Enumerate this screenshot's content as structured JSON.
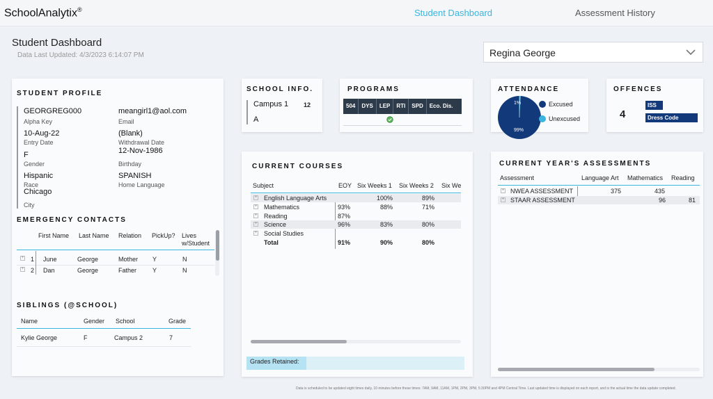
{
  "header": {
    "logo": "SchoolAnalytix",
    "logo_mark": "®",
    "tabs": [
      "Student Dashboard",
      "Assessment History"
    ]
  },
  "page": {
    "title": "Student Dashboard",
    "updated": "Data Last Updated: 4/3/2023 6:14:07 PM",
    "selected_student": "Regina George",
    "footer_note": "Data is scheduled to be updated eight times daily, 10 minutes before these times: 7AM, 9AM, 11AM, 1PM, 2PM, 3PM, 5:30PM and 4PM Central Time. Last updated time is displayed on each report, and is the actual time the data update completed."
  },
  "profile": {
    "title": "STUDENT PROFILE",
    "alpha_key": "GEORGREG000",
    "alpha_key_label": "Alpha Key",
    "email": "meangirl1@aol.com",
    "email_label": "Email",
    "entry_date": "10-Aug-22",
    "entry_date_label": "Entry Date",
    "withdrawal": "(Blank)",
    "withdrawal_label": "Withdrawal Date",
    "gender": "F",
    "gender_label": "Gender",
    "birthday": "12-Nov-1986",
    "birthday_label": "Birthday",
    "race": "Hispanic",
    "race_label": "Race",
    "home_language": "SPANISH",
    "home_language_label": "Home Language",
    "city": "Chicago",
    "city_label": "City"
  },
  "emergency": {
    "title": "EMERGENCY CONTACTS",
    "headers": [
      "First Name",
      "Last Name",
      "Relation",
      "PickUp?",
      "Lives",
      "w/Student"
    ],
    "rows": [
      {
        "idx": "1",
        "first": "June",
        "last": "George",
        "relation": "Mother",
        "pickup": "Y",
        "lives": "N"
      },
      {
        "idx": "2",
        "first": "Dan",
        "last": "George",
        "relation": "Father",
        "pickup": "Y",
        "lives": "N"
      }
    ]
  },
  "siblings": {
    "title": "SIBLINGS (@SCHOOL)",
    "headers": [
      "Name",
      "Gender",
      "School",
      "Grade"
    ],
    "rows": [
      {
        "name": "Kylie George",
        "gender": "F",
        "school": "Campus 2",
        "grade": "7"
      }
    ]
  },
  "school_info": {
    "title": "SCHOOL INFO.",
    "campus": "Campus 1",
    "grade": "12",
    "track": "A"
  },
  "programs": {
    "title": "PROGRAMS",
    "headers": [
      "504",
      "DYS",
      "LEP",
      "RTI",
      "SPD",
      "Eco. Dis."
    ],
    "checked_index": 2
  },
  "attendance": {
    "title": "ATTENDANCE",
    "excused_label": "Excused",
    "unexcused_label": "Unexcused",
    "excused_pct_label": "99%",
    "unexcused_pct_label": "1%",
    "excused_fraction": 0.99,
    "colors": {
      "excused": "#123a7a",
      "unexcused": "#3ab5e0"
    }
  },
  "offences": {
    "title": "OFFENCES",
    "count": "4",
    "types": [
      "ISS",
      "Dress Code"
    ]
  },
  "courses": {
    "title": "CURRENT COURSES",
    "headers": [
      "Subject",
      "EOY",
      "Six Weeks 1",
      "Six Weeks 2",
      "Six We"
    ],
    "rows": [
      {
        "subject": "English Language Arts",
        "eoy": "",
        "sw1": "100%",
        "sw2": "89%"
      },
      {
        "subject": "Mathematics",
        "eoy": "93%",
        "sw1": "88%",
        "sw2": "71%"
      },
      {
        "subject": "Reading",
        "eoy": "87%",
        "sw1": "",
        "sw2": ""
      },
      {
        "subject": "Science",
        "eoy": "96%",
        "sw1": "83%",
        "sw2": "80%"
      },
      {
        "subject": "Social Studies",
        "eoy": "",
        "sw1": "",
        "sw2": ""
      }
    ],
    "total": {
      "subject": "Total",
      "eoy": "91%",
      "sw1": "90%",
      "sw2": "80%"
    },
    "grades_retained_label": "Grades Retained:"
  },
  "assessments": {
    "title": "CURRENT YEAR'S ASSESSMENTS",
    "headers": [
      "Assessment",
      "Language Art",
      "Mathematics",
      "Reading"
    ],
    "rows": [
      {
        "name": "NWEA ASSESSMENT",
        "la": "375",
        "math": "435",
        "reading": ""
      },
      {
        "name": "STAAR ASSESSMENT",
        "la": "",
        "math": "96",
        "reading": "81"
      }
    ]
  }
}
